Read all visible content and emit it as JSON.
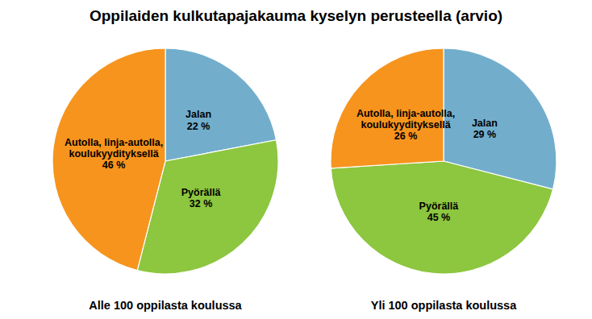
{
  "chart_data": [
    {
      "type": "pie",
      "title": "Oppilaiden kulkutapajakauma kyselyn perusteella (arvio)",
      "subtitle": "Alle 100 oppilasta koulussa",
      "categories": [
        "Jalan",
        "Pyörällä",
        "Autolla, linja-autolla,\nkoulukyydityksellä"
      ],
      "values": [
        22,
        32,
        46
      ],
      "value_labels": [
        "22 %",
        "32 %",
        "46 %"
      ],
      "colors": [
        "#72aecc",
        "#8dc63f",
        "#f7941d"
      ],
      "data_labels": true
    },
    {
      "type": "pie",
      "subtitle": "Yli 100 oppilasta koulussa",
      "categories": [
        "Jalan",
        "Pyörällä",
        "Autolla, linja-autolla,\nkoulukyydityksellä"
      ],
      "values": [
        29,
        45,
        26
      ],
      "value_labels": [
        "29 %",
        "45 %",
        "26 %"
      ],
      "colors": [
        "#72aecc",
        "#8dc63f",
        "#f7941d"
      ],
      "data_labels": true
    }
  ]
}
